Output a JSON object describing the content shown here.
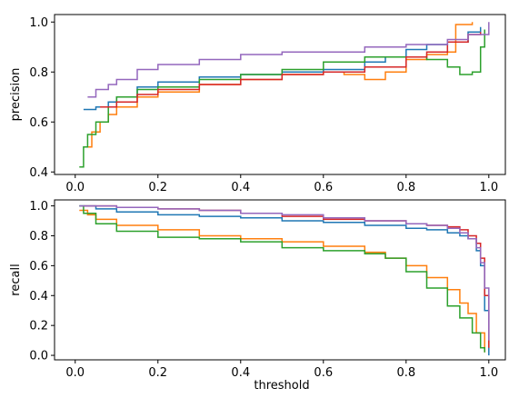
{
  "chart_data": [
    {
      "type": "line",
      "xlabel": "",
      "ylabel": "precision",
      "xlim": [
        -0.05,
        1.04
      ],
      "ylim": [
        0.39,
        1.03
      ],
      "xticks": [
        0.0,
        0.2,
        0.4,
        0.6,
        0.8,
        1.0
      ],
      "xtick_labels": [
        "0.0",
        "0.2",
        "0.4",
        "0.6",
        "0.8",
        "1.0"
      ],
      "yticks": [
        0.4,
        0.6,
        0.8,
        1.0
      ],
      "ytick_labels": [
        "0.4",
        "0.6",
        "0.8",
        "1.0"
      ],
      "grid": false,
      "series": [
        {
          "color": "#1f77b4",
          "x": [
            0.02,
            0.05,
            0.08,
            0.1,
            0.15,
            0.2,
            0.3,
            0.4,
            0.5,
            0.6,
            0.7,
            0.75,
            0.8,
            0.85,
            0.9,
            0.95,
            0.98
          ],
          "y": [
            0.65,
            0.66,
            0.68,
            0.7,
            0.74,
            0.76,
            0.78,
            0.79,
            0.8,
            0.81,
            0.84,
            0.86,
            0.89,
            0.91,
            0.92,
            0.96,
            0.98
          ]
        },
        {
          "color": "#ff7f0e",
          "x": [
            0.02,
            0.04,
            0.06,
            0.08,
            0.1,
            0.15,
            0.2,
            0.3,
            0.4,
            0.5,
            0.6,
            0.65,
            0.7,
            0.75,
            0.8,
            0.85,
            0.9,
            0.92,
            0.96
          ],
          "y": [
            0.5,
            0.56,
            0.6,
            0.63,
            0.66,
            0.7,
            0.72,
            0.75,
            0.77,
            0.79,
            0.8,
            0.79,
            0.77,
            0.8,
            0.85,
            0.87,
            0.88,
            0.99,
            1.0
          ]
        },
        {
          "color": "#2ca02c",
          "x": [
            0.01,
            0.02,
            0.03,
            0.05,
            0.08,
            0.1,
            0.15,
            0.2,
            0.3,
            0.4,
            0.5,
            0.6,
            0.7,
            0.8,
            0.85,
            0.9,
            0.93,
            0.96,
            0.98,
            0.99
          ],
          "y": [
            0.42,
            0.5,
            0.55,
            0.6,
            0.66,
            0.7,
            0.73,
            0.74,
            0.77,
            0.79,
            0.81,
            0.84,
            0.86,
            0.86,
            0.85,
            0.82,
            0.79,
            0.8,
            0.9,
            0.97
          ]
        },
        {
          "color": "#d62728",
          "x": [
            0.06,
            0.1,
            0.15,
            0.2,
            0.3,
            0.4,
            0.5,
            0.6,
            0.7,
            0.8,
            0.85,
            0.9,
            0.95,
            0.98
          ],
          "y": [
            0.66,
            0.68,
            0.71,
            0.73,
            0.75,
            0.77,
            0.79,
            0.8,
            0.82,
            0.86,
            0.88,
            0.92,
            0.95,
            0.96
          ]
        },
        {
          "color": "#9467bd",
          "x": [
            0.03,
            0.05,
            0.08,
            0.1,
            0.15,
            0.2,
            0.3,
            0.4,
            0.5,
            0.6,
            0.7,
            0.8,
            0.9,
            0.95,
            1.0
          ],
          "y": [
            0.7,
            0.73,
            0.75,
            0.77,
            0.81,
            0.83,
            0.85,
            0.87,
            0.88,
            0.88,
            0.9,
            0.91,
            0.93,
            0.95,
            1.0
          ]
        }
      ]
    },
    {
      "type": "line",
      "xlabel": "threshold",
      "ylabel": "recall",
      "xlim": [
        -0.05,
        1.04
      ],
      "ylim": [
        -0.03,
        1.04
      ],
      "xticks": [
        0.0,
        0.2,
        0.4,
        0.6,
        0.8,
        1.0
      ],
      "xtick_labels": [
        "0.0",
        "0.2",
        "0.4",
        "0.6",
        "0.8",
        "1.0"
      ],
      "yticks": [
        0.0,
        0.2,
        0.4,
        0.6,
        0.8,
        1.0
      ],
      "ytick_labels": [
        "0.0",
        "0.2",
        "0.4",
        "0.6",
        "0.8",
        "1.0"
      ],
      "grid": false,
      "series": [
        {
          "color": "#1f77b4",
          "x": [
            0.01,
            0.05,
            0.1,
            0.2,
            0.3,
            0.4,
            0.5,
            0.6,
            0.7,
            0.8,
            0.85,
            0.9,
            0.93,
            0.95,
            0.97,
            0.98,
            0.99,
            1.0
          ],
          "y": [
            1.0,
            0.98,
            0.96,
            0.94,
            0.93,
            0.92,
            0.9,
            0.89,
            0.87,
            0.85,
            0.84,
            0.82,
            0.8,
            0.78,
            0.7,
            0.6,
            0.3,
            0.0
          ]
        },
        {
          "color": "#ff7f0e",
          "x": [
            0.01,
            0.03,
            0.05,
            0.1,
            0.2,
            0.3,
            0.4,
            0.5,
            0.6,
            0.7,
            0.75,
            0.8,
            0.85,
            0.9,
            0.93,
            0.95,
            0.97,
            0.99
          ],
          "y": [
            0.97,
            0.94,
            0.91,
            0.87,
            0.84,
            0.8,
            0.78,
            0.76,
            0.73,
            0.69,
            0.65,
            0.6,
            0.52,
            0.44,
            0.35,
            0.28,
            0.15,
            0.02
          ]
        },
        {
          "color": "#2ca02c",
          "x": [
            0.01,
            0.02,
            0.05,
            0.1,
            0.2,
            0.3,
            0.4,
            0.5,
            0.6,
            0.7,
            0.75,
            0.8,
            0.85,
            0.9,
            0.93,
            0.96,
            0.98,
            0.99
          ],
          "y": [
            1.0,
            0.95,
            0.88,
            0.83,
            0.79,
            0.78,
            0.76,
            0.72,
            0.7,
            0.68,
            0.65,
            0.56,
            0.45,
            0.33,
            0.25,
            0.15,
            0.05,
            0.02
          ]
        },
        {
          "color": "#d62728",
          "x": [
            0.02,
            0.1,
            0.2,
            0.3,
            0.4,
            0.5,
            0.6,
            0.7,
            0.8,
            0.85,
            0.9,
            0.93,
            0.95,
            0.97,
            0.98,
            0.99,
            1.0
          ],
          "y": [
            1.0,
            0.99,
            0.98,
            0.97,
            0.95,
            0.93,
            0.91,
            0.9,
            0.88,
            0.87,
            0.86,
            0.84,
            0.8,
            0.75,
            0.65,
            0.4,
            0.05
          ]
        },
        {
          "color": "#9467bd",
          "x": [
            0.01,
            0.1,
            0.2,
            0.3,
            0.4,
            0.5,
            0.6,
            0.7,
            0.8,
            0.85,
            0.9,
            0.93,
            0.95,
            0.97,
            0.98,
            0.99,
            1.0
          ],
          "y": [
            1.0,
            0.99,
            0.98,
            0.97,
            0.95,
            0.94,
            0.92,
            0.9,
            0.88,
            0.87,
            0.85,
            0.82,
            0.78,
            0.72,
            0.62,
            0.45,
            0.1
          ]
        }
      ]
    }
  ]
}
